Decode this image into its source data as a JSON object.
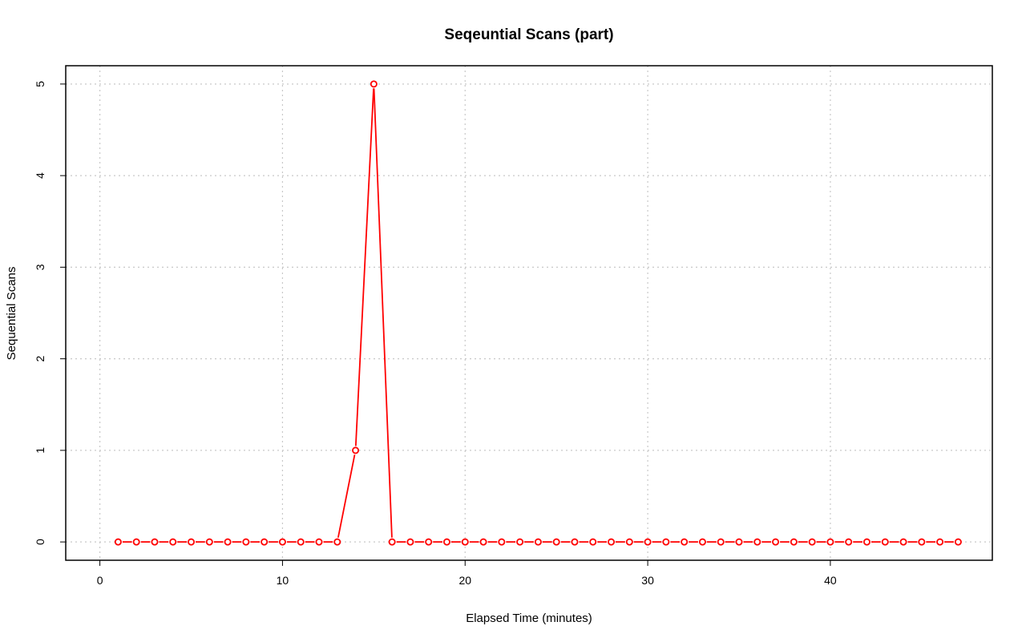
{
  "chart_data": {
    "type": "line",
    "title": "Seqeuntial Scans (part)",
    "xlabel": "Elapsed Time (minutes)",
    "ylabel": "Sequential Scans",
    "xlim": [
      -1.87,
      48.87
    ],
    "ylim": [
      -0.2,
      5.2
    ],
    "x_ticks": [
      0,
      10,
      20,
      30,
      40
    ],
    "y_ticks": [
      0,
      1,
      2,
      3,
      4,
      5
    ],
    "grid": true,
    "series_color": "#ff0000",
    "series": [
      {
        "x": [
          1,
          2,
          3,
          4,
          5,
          6,
          7,
          8,
          9,
          10,
          11,
          12,
          13,
          14,
          15,
          16,
          17,
          18,
          19,
          20,
          21,
          22,
          23,
          24,
          25,
          26,
          27,
          28,
          29,
          30,
          31,
          32,
          33,
          34,
          35,
          36,
          37,
          38,
          39,
          40,
          41,
          42,
          43,
          44,
          45,
          46,
          47
        ],
        "values": [
          0,
          0,
          0,
          0,
          0,
          0,
          0,
          0,
          0,
          0,
          0,
          0,
          0,
          1,
          5,
          0,
          0,
          0,
          0,
          0,
          0,
          0,
          0,
          0,
          0,
          0,
          0,
          0,
          0,
          0,
          0,
          0,
          0,
          0,
          0,
          0,
          0,
          0,
          0,
          0,
          0,
          0,
          0,
          0,
          0,
          0,
          0
        ]
      }
    ]
  }
}
